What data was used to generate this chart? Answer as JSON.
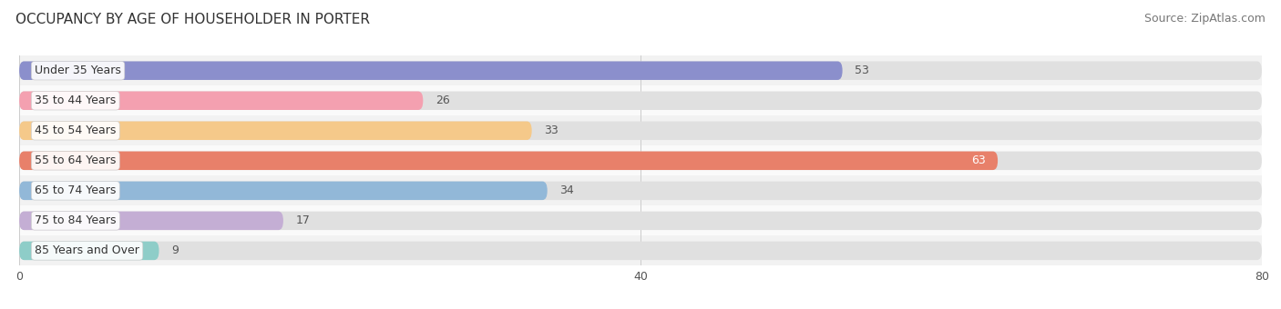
{
  "title": "OCCUPANCY BY AGE OF HOUSEHOLDER IN PORTER",
  "source": "Source: ZipAtlas.com",
  "categories": [
    "Under 35 Years",
    "35 to 44 Years",
    "45 to 54 Years",
    "55 to 64 Years",
    "65 to 74 Years",
    "75 to 84 Years",
    "85 Years and Over"
  ],
  "values": [
    53,
    26,
    33,
    63,
    34,
    17,
    9
  ],
  "bar_colors": [
    "#8b8fcc",
    "#f4a0b0",
    "#f5c98a",
    "#e8806a",
    "#92b8d8",
    "#c4aed4",
    "#8ecdc8"
  ],
  "bar_bg_color": "#e0e0e0",
  "xlim": [
    0,
    80
  ],
  "xticks": [
    0,
    40,
    80
  ],
  "title_fontsize": 11,
  "source_fontsize": 9,
  "label_fontsize": 9,
  "value_fontsize": 9,
  "background_color": "#ffffff",
  "bar_height": 0.62,
  "row_bg_colors": [
    "#f2f2f2",
    "#fafafa"
  ]
}
